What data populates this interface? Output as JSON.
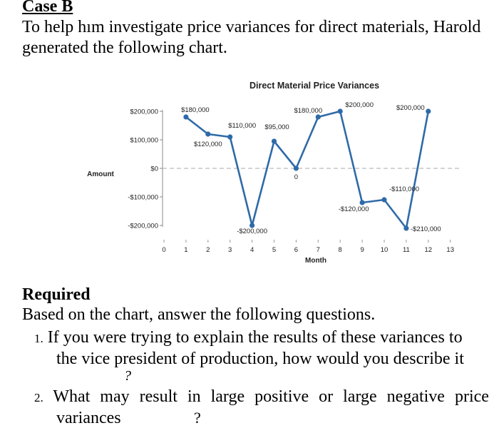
{
  "case": {
    "title": "Case B",
    "intro": "To help hım investigate price variances for direct materials, Harold generated the following chart."
  },
  "chart_data": {
    "type": "line",
    "title": "Direct Material Price Variances",
    "xlabel": "Month",
    "ylabel": "Amount",
    "x": [
      1,
      2,
      3,
      4,
      5,
      6,
      7,
      8,
      9,
      10,
      11,
      12
    ],
    "values": [
      180000,
      120000,
      110000,
      -200000,
      95000,
      0,
      180000,
      200000,
      -120000,
      -110000,
      -210000,
      200000
    ],
    "data_labels": [
      "$180,000",
      "$120,000",
      "$110,000",
      "-$200,000",
      "$95,000",
      "0",
      "$180,000",
      "$200,000",
      "-$120,000",
      "-$110,000",
      "-$210,000",
      "$200,000"
    ],
    "x_ticks": [
      "0",
      "1",
      "2",
      "3",
      "4",
      "5",
      "6",
      "7",
      "8",
      "9",
      "10",
      "11",
      "12",
      "13"
    ],
    "y_ticks": [
      {
        "value": 200000,
        "label": "$200,000"
      },
      {
        "value": 100000,
        "label": "$100,000"
      },
      {
        "value": 0,
        "label": "$0"
      },
      {
        "value": -100000,
        "label": "-$100,000"
      },
      {
        "value": -200000,
        "label": "-$200,000"
      }
    ],
    "xlim": [
      0,
      13
    ],
    "ylim": [
      -200000,
      200000
    ],
    "line_color": "#2f6aa8",
    "zero_line": "dashed"
  },
  "required": {
    "title": "Required",
    "description": "Based on the chart, answer the following questions.",
    "q1_num": "1.",
    "q1_line1": "If you were trying to explain the results of these variances to",
    "q1_line2": "the vice president of production, how would you describe it",
    "q1_mark": "?",
    "q2_num": "2.",
    "q2_line1": "What may result in large positive or large negative price",
    "q2_line2": "variances",
    "q2_mark": "?"
  }
}
